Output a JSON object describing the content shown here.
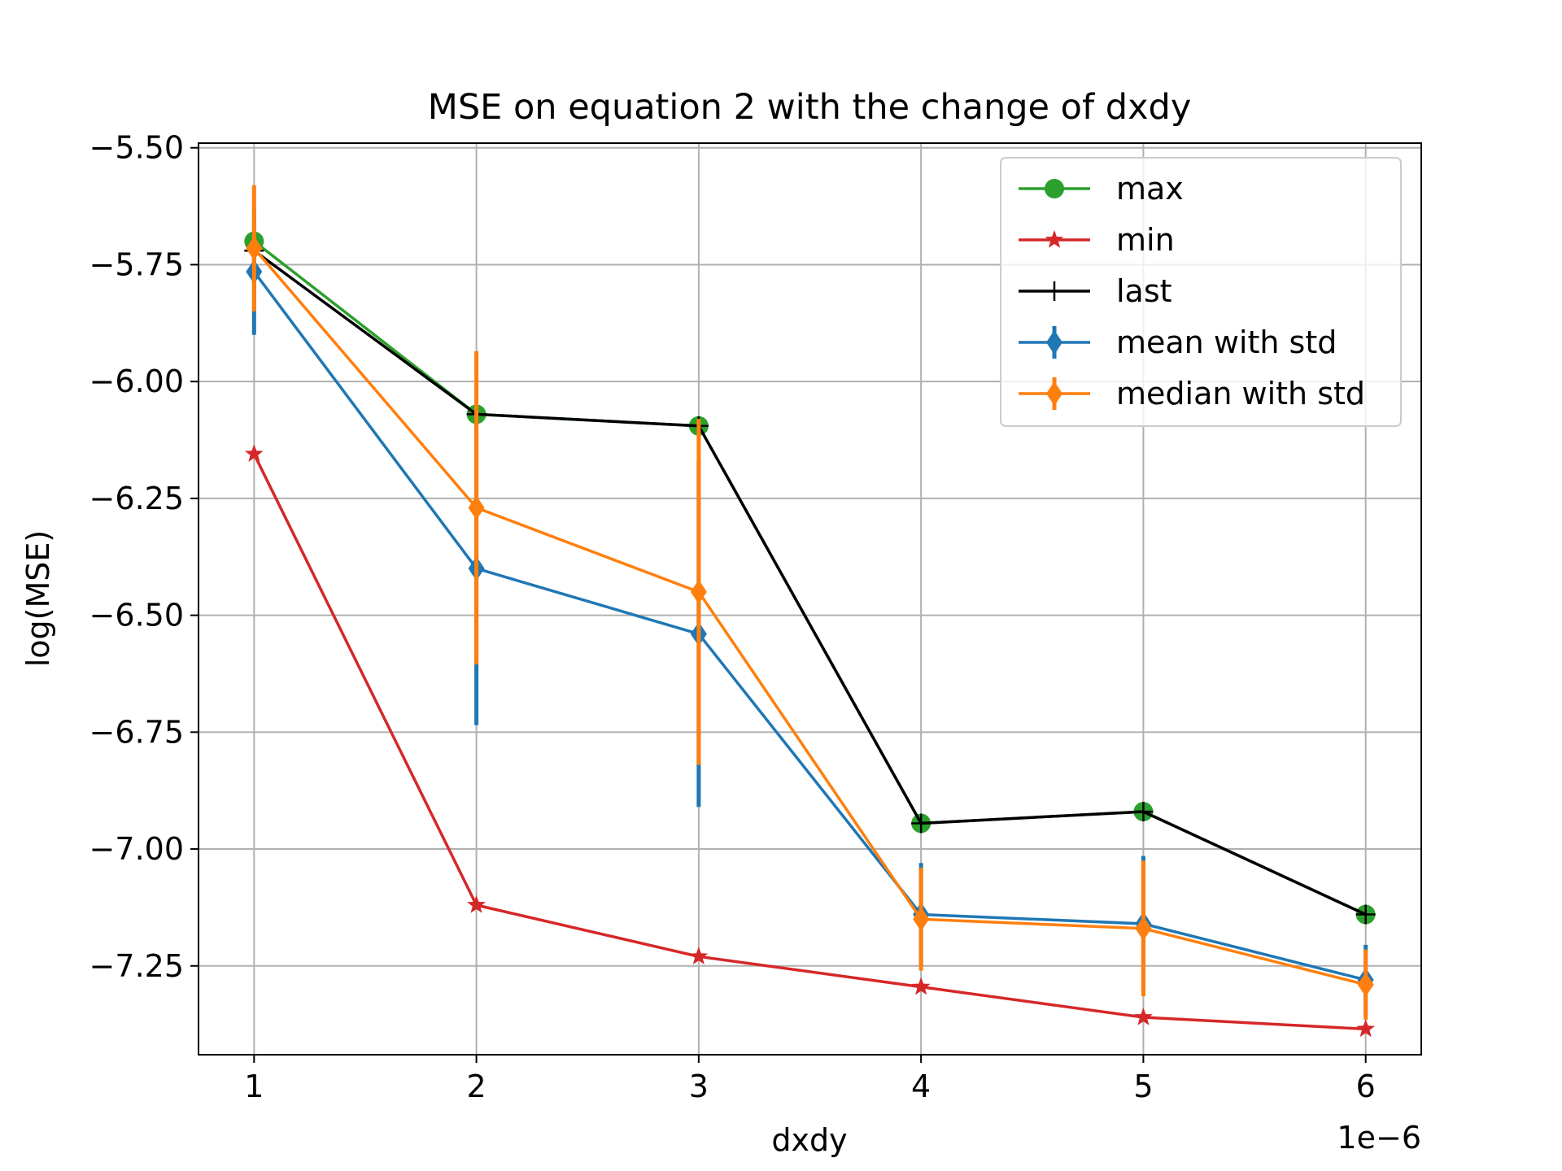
{
  "chart_data": {
    "type": "line",
    "title": "MSE on equation 2 with the change of dxdy",
    "xlabel": "dxdy",
    "ylabel": "log(MSE)",
    "x_offset_label": "1e−6",
    "x": [
      1,
      2,
      3,
      4,
      5,
      6
    ],
    "x_tick_labels": [
      "1",
      "2",
      "3",
      "4",
      "5",
      "6"
    ],
    "y_ticks": [
      -5.5,
      -5.75,
      -6.0,
      -6.25,
      -6.5,
      -6.75,
      -7.0,
      -7.25
    ],
    "y_tick_labels": [
      "−5.50",
      "−5.75",
      "−6.00",
      "−6.25",
      "−6.50",
      "−6.75",
      "−7.00",
      "−7.25"
    ],
    "xlim": [
      0.75,
      6.25
    ],
    "ylim": [
      -7.44,
      -5.49
    ],
    "grid": true,
    "legend_position": "top-right",
    "series": [
      {
        "name": "max",
        "color": "#2ca02c",
        "marker": "circle",
        "values": [
          -5.7,
          -6.07,
          -6.095,
          -6.945,
          -6.92,
          -7.14
        ]
      },
      {
        "name": "min",
        "color": "#d62728",
        "marker": "star",
        "values": [
          -6.155,
          -7.12,
          -7.23,
          -7.295,
          -7.36,
          -7.385
        ]
      },
      {
        "name": "last",
        "color": "#000000",
        "marker": "plus",
        "values": [
          -5.72,
          -6.07,
          -6.095,
          -6.945,
          -6.92,
          -7.14
        ]
      },
      {
        "name": "mean with std",
        "color": "#1f77b4",
        "marker": "diamond",
        "values": [
          -5.765,
          -6.4,
          -6.54,
          -7.14,
          -7.16,
          -7.28
        ],
        "err": [
          0.135,
          0.335,
          0.37,
          0.11,
          0.145,
          0.075
        ]
      },
      {
        "name": "median with std",
        "color": "#ff7f0e",
        "marker": "diamond",
        "values": [
          -5.715,
          -6.27,
          -6.45,
          -7.15,
          -7.17,
          -7.29
        ],
        "err": [
          0.135,
          0.335,
          0.37,
          0.11,
          0.145,
          0.075
        ]
      }
    ]
  }
}
